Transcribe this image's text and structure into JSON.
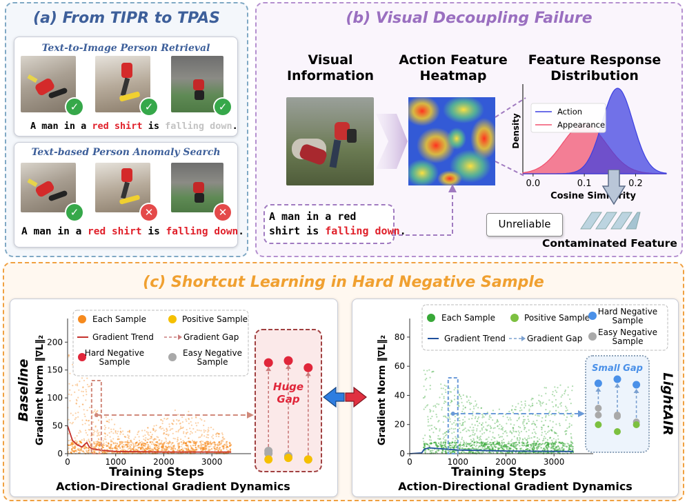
{
  "panel_a": {
    "title": "(a) From TIPR to TPAS",
    "tipr": {
      "title": "Text-to-Image Person Retrieval",
      "caption": {
        "p1": "A man in a ",
        "p2": "red shirt",
        "p3": " is ",
        "p4": "falling down",
        "p5": "."
      },
      "marks": [
        "✓",
        "✓",
        "✓"
      ]
    },
    "tpas": {
      "title": "Text-based Person Anomaly Search",
      "caption": {
        "p1": "A man in a ",
        "p2": "red shirt",
        "p3": " is ",
        "p4": "falling down",
        "p5": "."
      },
      "marks": [
        "✓",
        "✕",
        "✕"
      ]
    }
  },
  "panel_b": {
    "title": "(b) Visual Decoupling Failure",
    "visual_info": "Visual\nInformation",
    "heatmap_title": "Action Feature\nHeatmap",
    "dist_title": "Feature Response\nDistribution",
    "sentence": {
      "p1": "A man in a red\nshirt is ",
      "p2": "falling down",
      "p3": "."
    },
    "unreliable": "Unreliable",
    "contaminated": "Contaminated Feature"
  },
  "panel_c": {
    "title": "(c) Shortcut Learning in Hard Negative Sample",
    "left_side_label": "Baseline",
    "right_side_label": "LightAIR",
    "huge_gap": "Huge\nGap",
    "small_gap": "Small Gap",
    "left_legend": [
      "Each Sample",
      "Positive Sample",
      "Gradient Trend",
      "Gradient Gap",
      "Hard Negative\nSample",
      "Easy Negative\nSample"
    ],
    "right_legend": [
      "Each Sample",
      "Positive Sample",
      "Hard Negative\nSample",
      "Gradient Trend",
      "Gradient Gap",
      "Easy Negative\nSample"
    ],
    "caption": "Action-Directional Gradient Dynamics"
  },
  "chart_data": [
    {
      "type": "area",
      "title": "",
      "xlabel": "Cosine Similarity",
      "ylabel": "Density",
      "xticks": [
        "0.0",
        "0.1",
        "0.2"
      ],
      "series": [
        {
          "name": "Action",
          "color": "#3b3fe0",
          "mean": 0.165,
          "std": 0.03,
          "peak": 1.0
        },
        {
          "name": "Appearance",
          "color": "#f0506e",
          "mean": 0.1,
          "std": 0.043,
          "peak": 0.58
        }
      ],
      "xlim": [
        -0.02,
        0.26
      ],
      "legend": "top-left"
    },
    {
      "type": "scatter",
      "name": "Baseline",
      "xlabel": "Training Steps",
      "ylabel": "Gradient Norm ‖∇L‖₂",
      "xlim": [
        0,
        3700
      ],
      "ylim": [
        0,
        230
      ],
      "xticks": [
        0,
        1000,
        2000,
        3000
      ],
      "yticks": [
        0,
        50,
        100,
        150,
        200
      ],
      "point_color": "#f68a1e",
      "trend_color": "#c4302b",
      "trend": [
        [
          0,
          50
        ],
        [
          100,
          24
        ],
        [
          200,
          16
        ],
        [
          300,
          12
        ],
        [
          400,
          20
        ],
        [
          450,
          12
        ],
        [
          500,
          9
        ],
        [
          700,
          6
        ],
        [
          1000,
          4
        ],
        [
          2000,
          3
        ],
        [
          3400,
          3
        ]
      ],
      "marked_step": 600,
      "zoom": {
        "hard_negative": [
          198,
          202,
          188
        ],
        "easy_negative": [
          22,
          17,
          10,
          12,
          5
        ],
        "positive": [
          5,
          8,
          5
        ]
      }
    },
    {
      "type": "scatter",
      "name": "LightAIR",
      "xlabel": "Training Steps",
      "ylabel": "Gradient Norm ‖∇L‖₂",
      "xlim": [
        0,
        3700
      ],
      "ylim": [
        0,
        88
      ],
      "xticks": [
        0,
        1000,
        2000,
        3000
      ],
      "yticks": [
        0,
        20,
        40,
        60,
        80
      ],
      "point_color": "#38a838",
      "trend_color": "#1e4f9c",
      "trend": [
        [
          0,
          0
        ],
        [
          250,
          0.5
        ],
        [
          300,
          3
        ],
        [
          400,
          4
        ],
        [
          600,
          3.5
        ],
        [
          1000,
          2.5
        ],
        [
          2000,
          1.8
        ],
        [
          3400,
          1.5
        ]
      ],
      "marked_step": 900,
      "zoom": {
        "hard_negative": [
          43,
          46,
          42
        ],
        "easy_negative": [
          25,
          20,
          19,
          20,
          15
        ],
        "positive": [
          13,
          8,
          13
        ]
      }
    }
  ]
}
